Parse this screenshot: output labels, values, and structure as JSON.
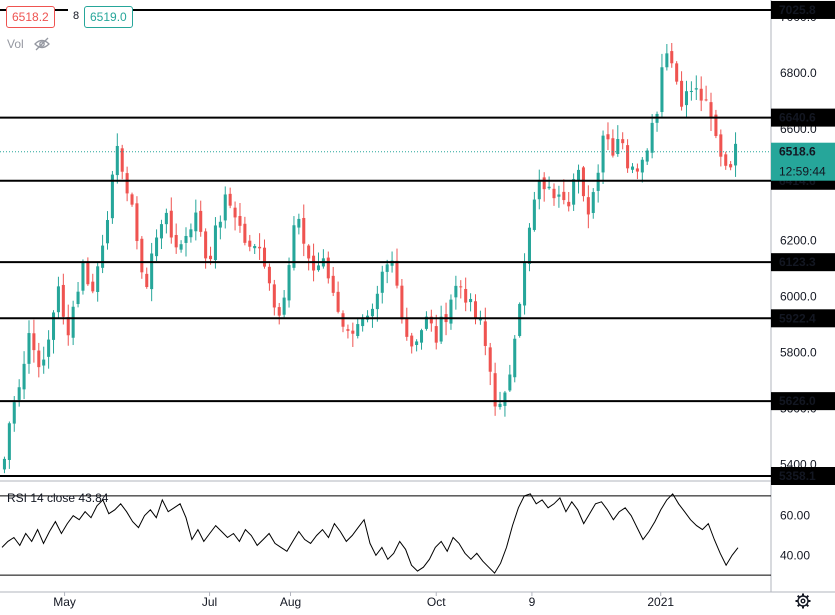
{
  "header": {
    "bid": "6518.2",
    "spread": "8",
    "ask": "6519.0",
    "volume_label": "Vol",
    "volume_icon": "eye-off-icon"
  },
  "colors": {
    "up": "#26a69a",
    "down": "#ef5350",
    "level_line": "#000000",
    "rsi_line": "#000000",
    "last_price_badge": "#26a69a",
    "countdown_badge": "#26a69a"
  },
  "chart_data": [
    {
      "type": "candlestick",
      "title": "",
      "ylim": [
        5358.1,
        7040
      ],
      "y_ticks": [
        "7000.0",
        "6800.0",
        "6600.0",
        "6400.0",
        "6200.0",
        "6000.0",
        "5800.0",
        "5600.0",
        "5400.0"
      ],
      "x_ticks": [
        "May",
        "Jul",
        "Aug",
        "Oct",
        "9",
        "2021"
      ],
      "horizontal_levels": [
        {
          "value": 7025.8,
          "label": "7025.8"
        },
        {
          "value": 6640.6,
          "label": "6640.6"
        },
        {
          "value": 6414.6,
          "label": "6414.6"
        },
        {
          "value": 6123.3,
          "label": "6123.3"
        },
        {
          "value": 5922.4,
          "label": "5922.4"
        },
        {
          "value": 5626.0,
          "label": "5626.0"
        },
        {
          "value": 5358.1,
          "label": "5358.1"
        }
      ],
      "last_price": {
        "value": 6518.6,
        "label": "6518.6"
      },
      "countdown": "12:59:44",
      "close_path": [
        5420,
        5640,
        5720,
        5910,
        5700,
        5850,
        6040,
        5860,
        5990,
        6120,
        6010,
        6180,
        6360,
        6540,
        6360,
        6230,
        6000,
        6200,
        6300,
        6210,
        6180,
        6260,
        6290,
        6120,
        6230,
        6340,
        6320,
        6220,
        6150,
        6200,
        6060,
        5950,
        6020,
        6280,
        6200,
        6090,
        6130,
        6050,
        5950,
        5860,
        5920,
        5900,
        5930,
        6080,
        6120,
        5970,
        5820,
        5870,
        5920,
        5850,
        5930,
        6030,
        6040,
        5950,
        5900,
        5760,
        5580,
        5640,
        5900,
        6100,
        6320,
        6420,
        6360,
        6400,
        6350,
        6460,
        6290,
        6390,
        6600,
        6530,
        6600,
        6430,
        6480,
        6560,
        6660,
        6920,
        6810,
        6700,
        6740,
        6720,
        6650,
        6540,
        6470,
        6520
      ]
    },
    {
      "type": "line",
      "title": "RSI 14 close",
      "current_value": "43.84",
      "ylim": [
        25,
        75
      ],
      "y_ticks": [
        "60.00",
        "40.00"
      ],
      "bands": [
        70,
        30
      ],
      "values": [
        44,
        47,
        49,
        45,
        51,
        47,
        53,
        46,
        52,
        57,
        51,
        56,
        60,
        58,
        62,
        59,
        65,
        68,
        61,
        63,
        66,
        62,
        57,
        54,
        60,
        63,
        59,
        68,
        62,
        64,
        66,
        59,
        48,
        53,
        47,
        51,
        55,
        52,
        49,
        51,
        47,
        53,
        50,
        45,
        48,
        51,
        46,
        44,
        42,
        47,
        52,
        48,
        46,
        50,
        53,
        49,
        56,
        52,
        47,
        50,
        54,
        58,
        46,
        40,
        44,
        38,
        41,
        47,
        43,
        35,
        32,
        34,
        38,
        44,
        47,
        42,
        49,
        46,
        41,
        38,
        41,
        37,
        34,
        31,
        36,
        44,
        55,
        64,
        70,
        71,
        66,
        68,
        64,
        66,
        69,
        62,
        67,
        63,
        56,
        61,
        66,
        67,
        63,
        58,
        62,
        64,
        60,
        54,
        48,
        52,
        57,
        63,
        68,
        71,
        66,
        62,
        58,
        55,
        53,
        56,
        48,
        41,
        35,
        40,
        43.84
      ]
    }
  ]
}
